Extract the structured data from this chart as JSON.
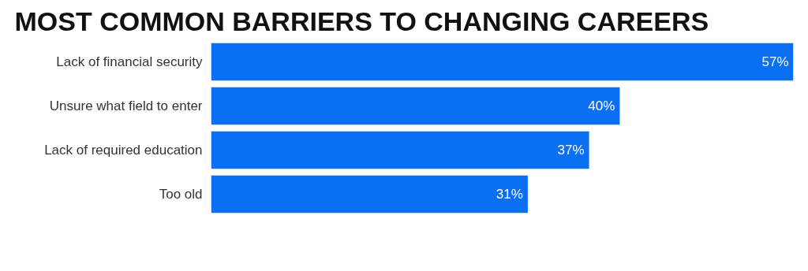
{
  "chart_data": {
    "type": "bar",
    "orientation": "horizontal",
    "title": "MOST COMMON BARRIERS TO CHANGING CAREERS",
    "categories": [
      "Lack of financial security",
      "Unsure what field to enter",
      "Lack of required education",
      "Too old"
    ],
    "values": [
      57,
      40,
      37,
      31
    ],
    "value_labels": [
      "57%",
      "40%",
      "37%",
      "31%"
    ],
    "color": "#0b6ff4",
    "grid": false
  }
}
